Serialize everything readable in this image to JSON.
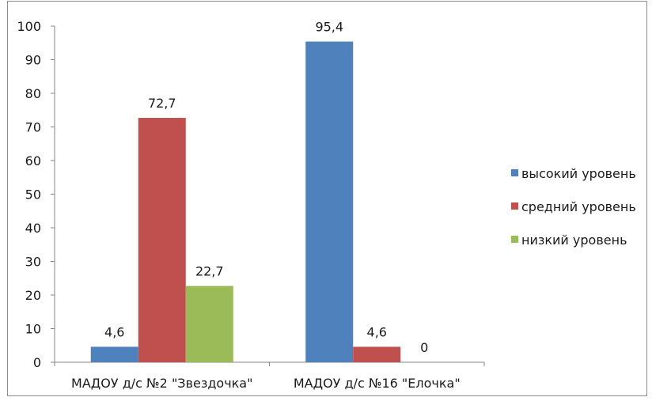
{
  "chart_data": {
    "type": "bar",
    "categories": [
      "МАДОУ д/с №2 \"Звездочка\"",
      "МАДОУ д/с №16 \"Елочка\""
    ],
    "series": [
      {
        "name": "высокий уровень",
        "values": [
          4.6,
          95.4
        ],
        "labels": [
          "4,6",
          "95,4"
        ],
        "color": "#4f81bd"
      },
      {
        "name": "средний уровень",
        "values": [
          72.7,
          4.6
        ],
        "labels": [
          "72,7",
          "4,6"
        ],
        "color": "#c0504d"
      },
      {
        "name": "низкий уровень",
        "values": [
          22.7,
          0
        ],
        "labels": [
          "22,7",
          "0"
        ],
        "color": "#9bbb59"
      }
    ],
    "yticks": [
      0,
      10,
      20,
      30,
      40,
      50,
      60,
      70,
      80,
      90,
      100
    ],
    "ylim": [
      0,
      100
    ],
    "title": "",
    "xlabel": "",
    "ylabel": "",
    "grid": false,
    "legend_position": "right"
  }
}
